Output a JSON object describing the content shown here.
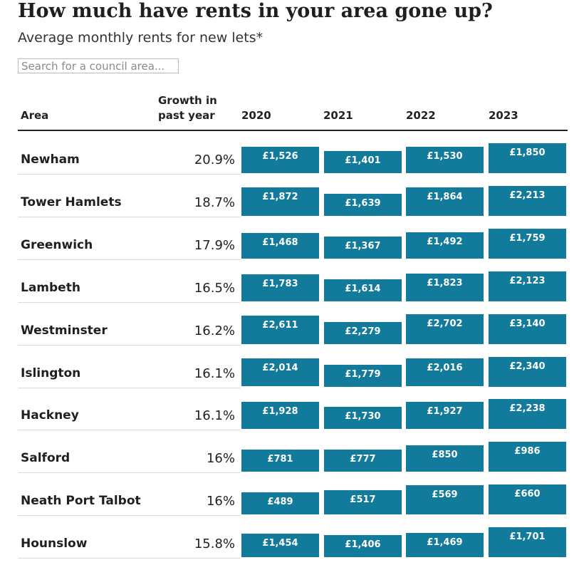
{
  "header": {
    "title": "How much have rents in your area gone up?",
    "subtitle": "Average monthly rents for new lets*"
  },
  "search": {
    "placeholder": "Search for a council area..."
  },
  "table": {
    "columns": {
      "area": "Area",
      "growth_line1": "Growth in",
      "growth_line2": "past year",
      "years": [
        "2020",
        "2021",
        "2022",
        "2023"
      ]
    }
  },
  "colors": {
    "bar": "#127a9b",
    "bar_text": "#ffffff",
    "rule": "#222222"
  },
  "chart_data": {
    "type": "table",
    "title": "How much have rents in your area gone up?",
    "subtitle": "Average monthly rents for new lets*",
    "columns": [
      "Area",
      "Growth in past year",
      "2020",
      "2021",
      "2022",
      "2023"
    ],
    "rows": [
      {
        "area": "Newham",
        "growth": "20.9%",
        "values": [
          1526,
          1401,
          1530,
          1850
        ],
        "labels": [
          "£1,526",
          "£1,401",
          "£1,530",
          "£1,850"
        ]
      },
      {
        "area": "Tower Hamlets",
        "growth": "18.7%",
        "values": [
          1872,
          1639,
          1864,
          2213
        ],
        "labels": [
          "£1,872",
          "£1,639",
          "£1,864",
          "£2,213"
        ]
      },
      {
        "area": "Greenwich",
        "growth": "17.9%",
        "values": [
          1468,
          1367,
          1492,
          1759
        ],
        "labels": [
          "£1,468",
          "£1,367",
          "£1,492",
          "£1,759"
        ]
      },
      {
        "area": "Lambeth",
        "growth": "16.5%",
        "values": [
          1783,
          1614,
          1823,
          2123
        ],
        "labels": [
          "£1,783",
          "£1,614",
          "£1,823",
          "£2,123"
        ]
      },
      {
        "area": "Westminster",
        "growth": "16.2%",
        "values": [
          2611,
          2279,
          2702,
          3140
        ],
        "labels": [
          "£2,611",
          "£2,279",
          "£2,702",
          "£3,140"
        ]
      },
      {
        "area": "Islington",
        "growth": "16.1%",
        "values": [
          2014,
          1779,
          2016,
          2340
        ],
        "labels": [
          "£2,014",
          "£1,779",
          "£2,016",
          "£2,340"
        ]
      },
      {
        "area": "Hackney",
        "growth": "16.1%",
        "values": [
          1928,
          1730,
          1927,
          2238
        ],
        "labels": [
          "£1,928",
          "£1,730",
          "£1,927",
          "£2,238"
        ]
      },
      {
        "area": "Salford",
        "growth": "16%",
        "values": [
          781,
          777,
          850,
          986
        ],
        "labels": [
          "£781",
          "£777",
          "£850",
          "£986"
        ]
      },
      {
        "area": "Neath Port Talbot",
        "growth": "16%",
        "values": [
          489,
          517,
          569,
          660
        ],
        "labels": [
          "£489",
          "£517",
          "£569",
          "£660"
        ]
      },
      {
        "area": "Hounslow",
        "growth": "15.8%",
        "values": [
          1454,
          1406,
          1469,
          1701
        ],
        "labels": [
          "£1,454",
          "£1,406",
          "£1,469",
          "£1,701"
        ]
      }
    ]
  }
}
